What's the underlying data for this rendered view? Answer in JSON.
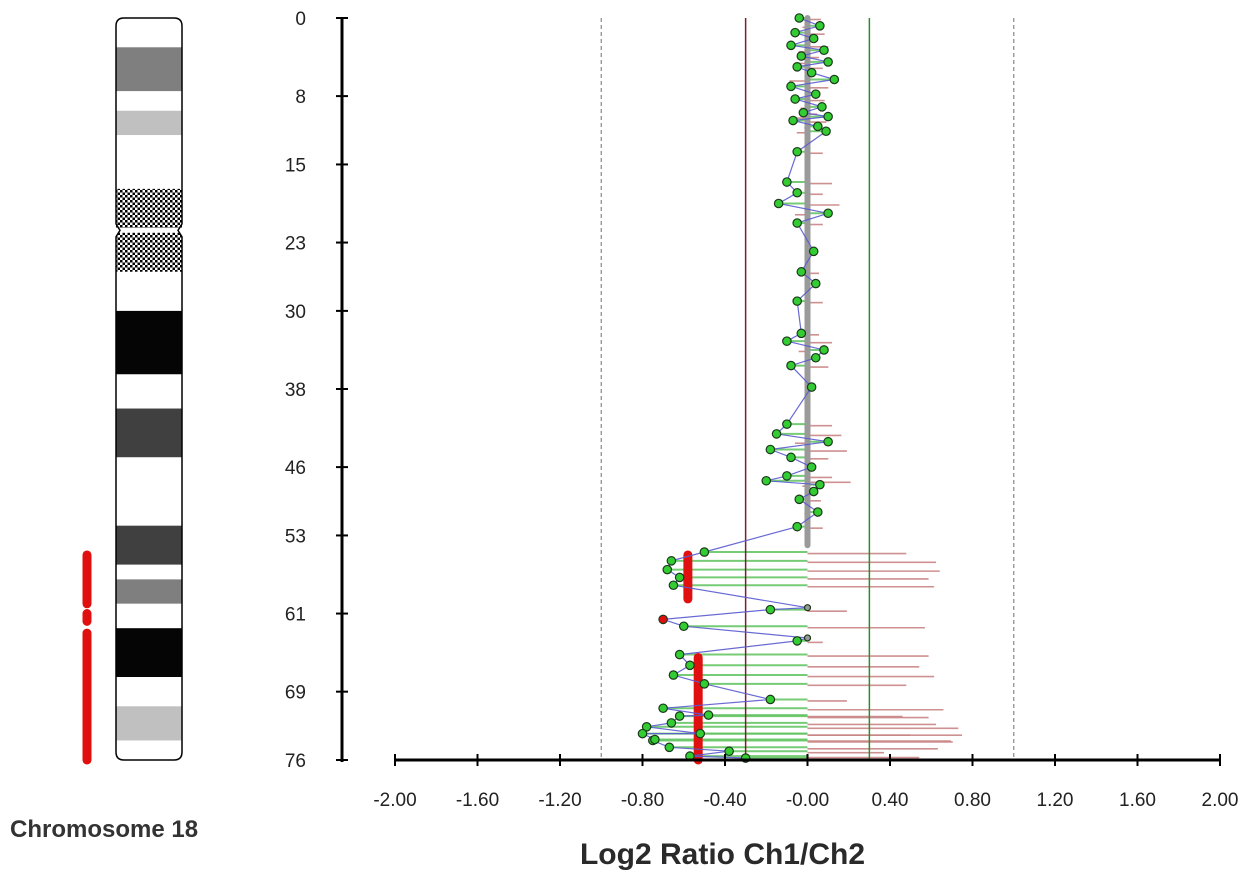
{
  "chromosome_label": "Chromosome 18",
  "chart_data": {
    "type": "scatter",
    "title": "",
    "xlabel": "Log2 Ratio Ch1/Ch2",
    "ylabel": "",
    "xlim": [
      -2.0,
      2.0
    ],
    "ylim": [
      0,
      76
    ],
    "x_ticks": [
      "-2.00",
      "-1.60",
      "-1.20",
      "-0.80",
      "-0.40",
      "-0.00",
      "0.40",
      "0.80",
      "1.20",
      "1.60",
      "2.00"
    ],
    "x_tick_values": [
      -2.0,
      -1.6,
      -1.2,
      -0.8,
      -0.4,
      0.0,
      0.4,
      0.8,
      1.2,
      1.6,
      2.0
    ],
    "y_ticks": [
      "0",
      "8",
      "15",
      "23",
      "30",
      "38",
      "46",
      "53",
      "61",
      "69",
      "76"
    ],
    "y_tick_values": [
      0,
      8,
      15,
      23,
      30,
      38,
      46,
      53,
      61,
      69,
      76
    ],
    "reference_lines": [
      {
        "x": -1.0,
        "style": "dashed",
        "color": "#888888"
      },
      {
        "x": 1.0,
        "style": "dashed",
        "color": "#888888"
      },
      {
        "x": -0.3,
        "style": "solid",
        "color": "#7a1f2b"
      },
      {
        "x": 0.3,
        "style": "solid",
        "color": "#2e8b2e"
      }
    ],
    "segments": [
      {
        "x": 0.0,
        "y_start": 0,
        "y_end": 54,
        "color": "#9a9a9a"
      },
      {
        "x": -0.58,
        "y_start": 55,
        "y_end": 59.5,
        "color": "#e01010"
      },
      {
        "x": -0.53,
        "y_start": 65.5,
        "y_end": 76,
        "color": "#e01010"
      }
    ],
    "aberrations": [
      {
        "y_start": 55,
        "y_end": 60,
        "color": "#e01010"
      },
      {
        "y_start": 61,
        "y_end": 61.8,
        "color": "#e01010"
      },
      {
        "y_start": 63,
        "y_end": 76,
        "color": "#e01010"
      }
    ],
    "ideogram_bands": [
      {
        "y_start": 0,
        "y_end": 3,
        "fill": "#ffffff"
      },
      {
        "y_start": 3,
        "y_end": 7.5,
        "fill": "#7f7f7f"
      },
      {
        "y_start": 7.5,
        "y_end": 9.5,
        "fill": "#ffffff"
      },
      {
        "y_start": 9.5,
        "y_end": 12,
        "fill": "#c0c0c0"
      },
      {
        "y_start": 12,
        "y_end": 17.5,
        "fill": "#ffffff"
      },
      {
        "y_start": 17.5,
        "y_end": 21.5,
        "fill": "pattern"
      },
      {
        "y_start": 22,
        "y_end": 26,
        "fill": "pattern"
      },
      {
        "y_start": 26,
        "y_end": 30,
        "fill": "#ffffff"
      },
      {
        "y_start": 30,
        "y_end": 36.5,
        "fill": "#050505"
      },
      {
        "y_start": 36.5,
        "y_end": 40,
        "fill": "#ffffff"
      },
      {
        "y_start": 40,
        "y_end": 45,
        "fill": "#404040"
      },
      {
        "y_start": 45,
        "y_end": 52,
        "fill": "#ffffff"
      },
      {
        "y_start": 52,
        "y_end": 56,
        "fill": "#404040"
      },
      {
        "y_start": 56,
        "y_end": 57.5,
        "fill": "#ffffff"
      },
      {
        "y_start": 57.5,
        "y_end": 60,
        "fill": "#7f7f7f"
      },
      {
        "y_start": 60,
        "y_end": 62.5,
        "fill": "#ffffff"
      },
      {
        "y_start": 62.5,
        "y_end": 67.5,
        "fill": "#050505"
      },
      {
        "y_start": 67.5,
        "y_end": 70.5,
        "fill": "#ffffff"
      },
      {
        "y_start": 70.5,
        "y_end": 74,
        "fill": "#c0c0c0"
      },
      {
        "y_start": 74,
        "y_end": 76,
        "fill": "#ffffff"
      }
    ],
    "series": [
      {
        "type": "points",
        "color": "#33cc33",
        "points": [
          [
            -0.04,
            0.0
          ],
          [
            0.06,
            0.8
          ],
          [
            -0.06,
            1.5
          ],
          [
            0.03,
            2.1
          ],
          [
            -0.08,
            2.8
          ],
          [
            0.08,
            3.3
          ],
          [
            -0.03,
            3.9
          ],
          [
            0.1,
            4.5
          ],
          [
            -0.05,
            5.0
          ],
          [
            0.02,
            5.6
          ],
          [
            0.13,
            6.3
          ],
          [
            -0.08,
            7.0
          ],
          [
            0.04,
            7.8
          ],
          [
            -0.06,
            8.3
          ],
          [
            0.07,
            9.1
          ],
          [
            -0.02,
            9.7
          ],
          [
            0.1,
            10.1
          ],
          [
            -0.07,
            10.5
          ],
          [
            0.05,
            11.1
          ],
          [
            0.09,
            11.6
          ],
          [
            -0.05,
            13.7
          ],
          [
            -0.1,
            16.8
          ],
          [
            -0.05,
            17.9
          ],
          [
            -0.14,
            19.0
          ],
          [
            0.1,
            20.0
          ],
          [
            -0.05,
            21.0
          ],
          [
            0.03,
            23.9
          ],
          [
            -0.03,
            26.0
          ],
          [
            0.04,
            27.2
          ],
          [
            -0.05,
            29.0
          ],
          [
            -0.03,
            32.3
          ],
          [
            -0.1,
            33.1
          ],
          [
            0.08,
            34.0
          ],
          [
            0.04,
            34.8
          ],
          [
            -0.08,
            35.6
          ],
          [
            0.02,
            37.8
          ],
          [
            -0.1,
            41.6
          ],
          [
            -0.15,
            42.6
          ],
          [
            0.1,
            43.4
          ],
          [
            -0.18,
            44.2
          ],
          [
            -0.08,
            45.0
          ],
          [
            0.02,
            46.0
          ],
          [
            -0.1,
            46.9
          ],
          [
            0.06,
            47.8
          ],
          [
            -0.2,
            47.4
          ],
          [
            0.03,
            48.5
          ],
          [
            -0.04,
            49.3
          ],
          [
            0.05,
            50.6
          ],
          [
            -0.05,
            52.1
          ],
          [
            -0.5,
            54.7
          ],
          [
            -0.66,
            55.6
          ],
          [
            -0.68,
            56.5
          ],
          [
            -0.62,
            57.3
          ],
          [
            -0.65,
            58.1
          ],
          [
            -0.18,
            60.6
          ],
          [
            -0.6,
            62.3
          ],
          [
            -0.05,
            63.8
          ],
          [
            -0.62,
            65.2
          ],
          [
            -0.57,
            66.3
          ],
          [
            -0.65,
            67.3
          ],
          [
            -0.5,
            68.2
          ],
          [
            -0.18,
            69.8
          ],
          [
            -0.7,
            70.7
          ],
          [
            -0.62,
            71.5
          ],
          [
            -0.78,
            72.6
          ],
          [
            -0.52,
            73.3
          ],
          [
            -0.75,
            74.0
          ],
          [
            -0.67,
            74.7
          ],
          [
            -0.38,
            75.1
          ],
          [
            -0.57,
            75.6
          ],
          [
            -0.3,
            75.8
          ],
          [
            -0.8,
            73.3
          ],
          [
            -0.66,
            72.2
          ],
          [
            -0.48,
            71.4
          ],
          [
            -0.74,
            73.9
          ]
        ]
      },
      {
        "type": "points",
        "color": "#e01010",
        "points": [
          [
            -0.7,
            61.6
          ]
        ]
      },
      {
        "type": "points",
        "color": "#999999",
        "points": [
          [
            0.0,
            60.4
          ],
          [
            0.0,
            63.5
          ]
        ]
      }
    ]
  }
}
